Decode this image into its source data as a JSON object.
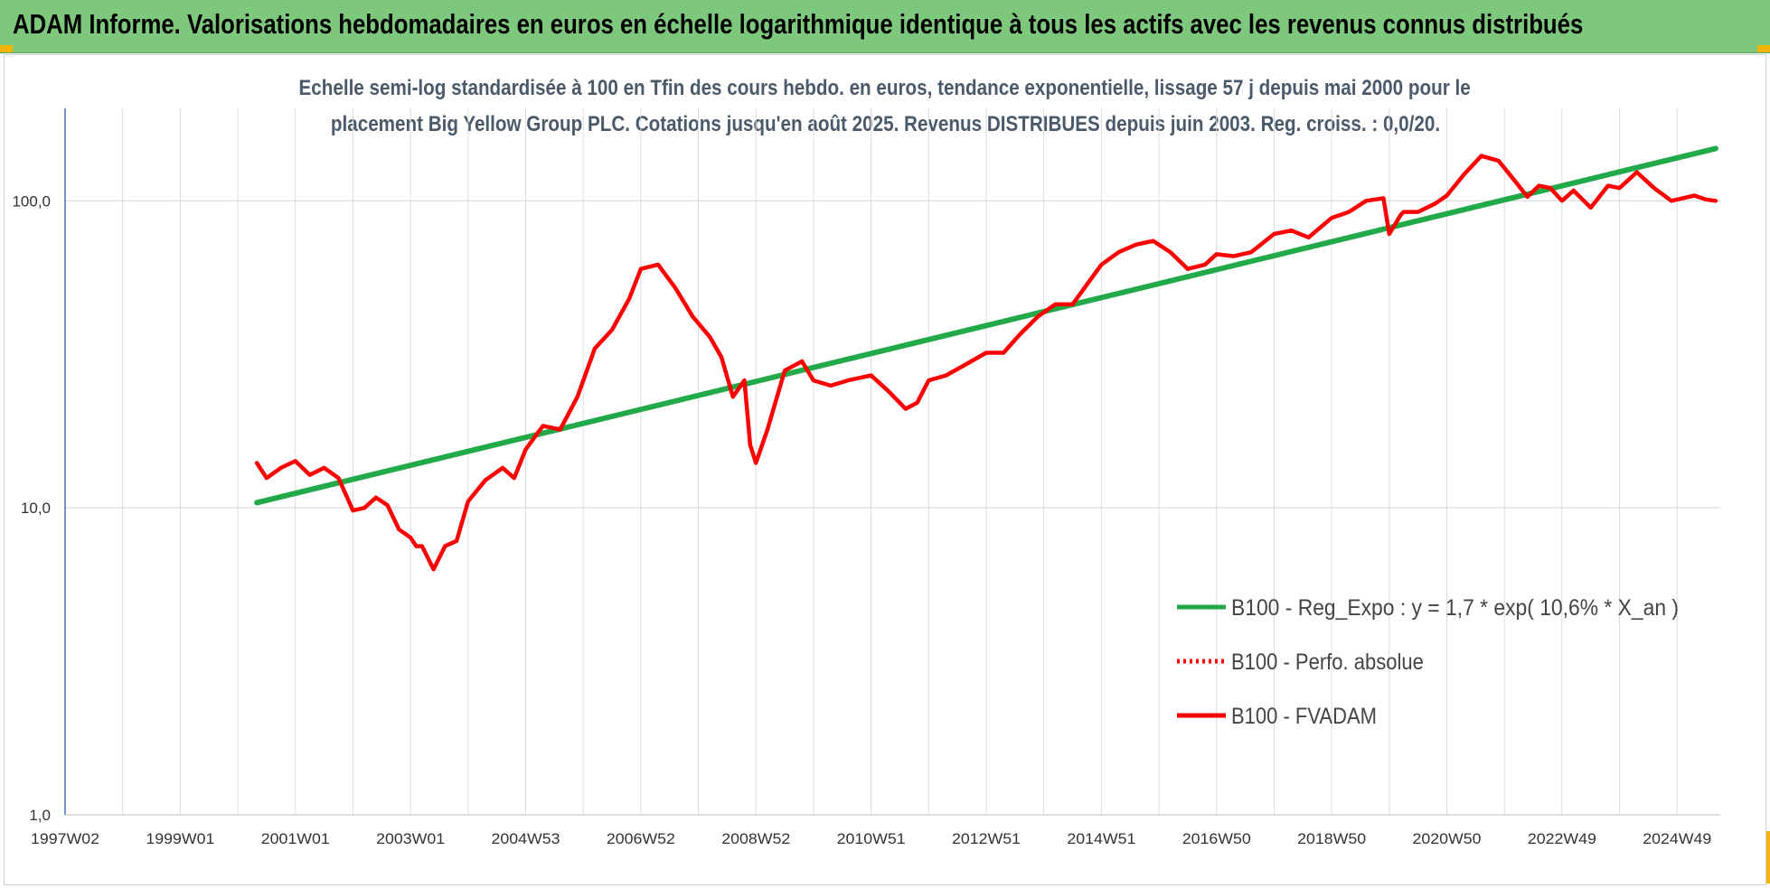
{
  "banner": {
    "title": "ADAM Informe. Valorisations hebdomadaires en euros en échelle logarithmique identique à tous les actifs avec les revenus connus distribués",
    "color": "#7dc87c"
  },
  "chart_data": {
    "type": "line",
    "title_lines": [
      "Echelle semi-log standardisée à 100 en Tfin des cours hebdo. en euros, tendance exponentielle, lissage 57 j depuis mai 2000 pour le",
      "placement Big Yellow Group PLC. Cotations jusqu'en août 2025. Revenus DISTRIBUES depuis juin 2003. Reg. croiss. : 0,0/20."
    ],
    "y_scale": "log",
    "ylim": [
      1,
      200
    ],
    "y_ticks": [
      "1,0",
      "10,0",
      "100,0"
    ],
    "x_range": [
      1997.0,
      2025.75
    ],
    "x_ticks": [
      "1997W02",
      "1999W01",
      "2001W01",
      "2003W01",
      "2004W53",
      "2006W52",
      "2008W52",
      "2010W51",
      "2012W51",
      "2014W51",
      "2016W50",
      "2018W50",
      "2020W50",
      "2022W49",
      "2024W49"
    ],
    "grid": "vertical and horizontal",
    "legend_position": "bottom-right",
    "series": [
      {
        "name": "B100 - Reg_Expo : y = 1,7 * exp( 10,6% *  X_an )",
        "color": "#22aa4a",
        "style": "solid",
        "x": [
          2000.33,
          2025.67
        ],
        "y": [
          10.4,
          148
        ]
      },
      {
        "name": "B100 - Perfo. absolue",
        "color": "#ff0000",
        "style": "dotted",
        "x": [],
        "y": []
      },
      {
        "name": "B100 - FVADAM",
        "color": "#ff0000",
        "style": "solid",
        "x": [
          2000.33,
          2000.5,
          2000.75,
          2001.0,
          2001.25,
          2001.5,
          2001.75,
          2002.0,
          2002.2,
          2002.4,
          2002.6,
          2002.8,
          2003.0,
          2003.1,
          2003.2,
          2003.4,
          2003.6,
          2003.8,
          2004.0,
          2004.3,
          2004.6,
          2004.8,
          2005.0,
          2005.3,
          2005.6,
          2005.9,
          2006.2,
          2006.5,
          2006.8,
          2007.0,
          2007.3,
          2007.6,
          2007.9,
          2008.2,
          2008.4,
          2008.6,
          2008.8,
          2008.9,
          2009.0,
          2009.2,
          2009.5,
          2009.8,
          2010.0,
          2010.3,
          2010.6,
          2011.0,
          2011.3,
          2011.6,
          2011.8,
          2012.0,
          2012.3,
          2012.6,
          2013.0,
          2013.3,
          2013.6,
          2013.9,
          2014.2,
          2014.5,
          2014.8,
          2015.0,
          2015.3,
          2015.6,
          2015.9,
          2016.2,
          2016.5,
          2016.8,
          2017.0,
          2017.3,
          2017.6,
          2018.0,
          2018.3,
          2018.6,
          2019.0,
          2019.3,
          2019.6,
          2019.9,
          2020.0,
          2020.2,
          2020.25,
          2020.5,
          2020.8,
          2021.0,
          2021.3,
          2021.6,
          2021.9,
          2022.2,
          2022.4,
          2022.6,
          2022.8,
          2023.0,
          2023.2,
          2023.5,
          2023.8,
          2024.0,
          2024.3,
          2024.6,
          2024.9,
          2025.1,
          2025.3,
          2025.5,
          2025.67
        ],
        "y": [
          14,
          12.5,
          13.5,
          14.2,
          12.8,
          13.5,
          12.5,
          9.8,
          10.0,
          10.8,
          10.2,
          8.5,
          8.0,
          7.5,
          7.5,
          6.3,
          7.5,
          7.8,
          10.5,
          12.3,
          13.5,
          12.5,
          15.5,
          18.5,
          18.0,
          23,
          33,
          38,
          48,
          60,
          62,
          52,
          42,
          36,
          31,
          23,
          26,
          16,
          14,
          18,
          28,
          30,
          26,
          25,
          26,
          27,
          24,
          21,
          22,
          26,
          27,
          29,
          32,
          32,
          37,
          42,
          46,
          46,
          55,
          62,
          68,
          72,
          74,
          68,
          60,
          62,
          67,
          66,
          68,
          78,
          80,
          76,
          88,
          92,
          100,
          102,
          78,
          90,
          92,
          92,
          98,
          104,
          122,
          140,
          135,
          115,
          103,
          112,
          110,
          100,
          108,
          95,
          112,
          110,
          124,
          110,
          100,
          102,
          104,
          101,
          100
        ]
      }
    ]
  }
}
